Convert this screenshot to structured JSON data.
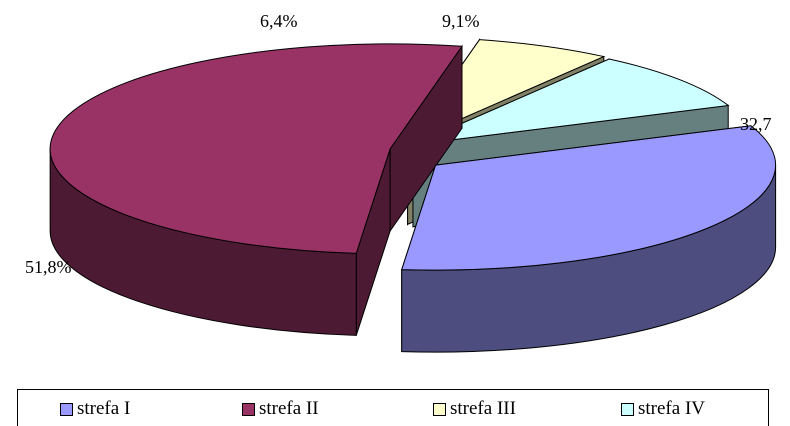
{
  "chart_data": {
    "type": "pie",
    "title": "",
    "style": "3d-exploded",
    "legend_position": "bottom",
    "slices": [
      {
        "label": "strefa I",
        "value": 32.7,
        "value_label": "32,7",
        "color": "#9999ff",
        "side_color": "#4d4d80"
      },
      {
        "label": "strefa II",
        "value": 51.8,
        "value_label": "51,8%",
        "color": "#993366",
        "side_color": "#4d1a33"
      },
      {
        "label": "strefa III",
        "value": 6.4,
        "value_label": "6,4%",
        "color": "#ffffcc",
        "side_color": "#808066"
      },
      {
        "label": "strefa IV",
        "value": 9.1,
        "value_label": "9,1%",
        "color": "#ccffff",
        "side_color": "#668080"
      }
    ]
  }
}
